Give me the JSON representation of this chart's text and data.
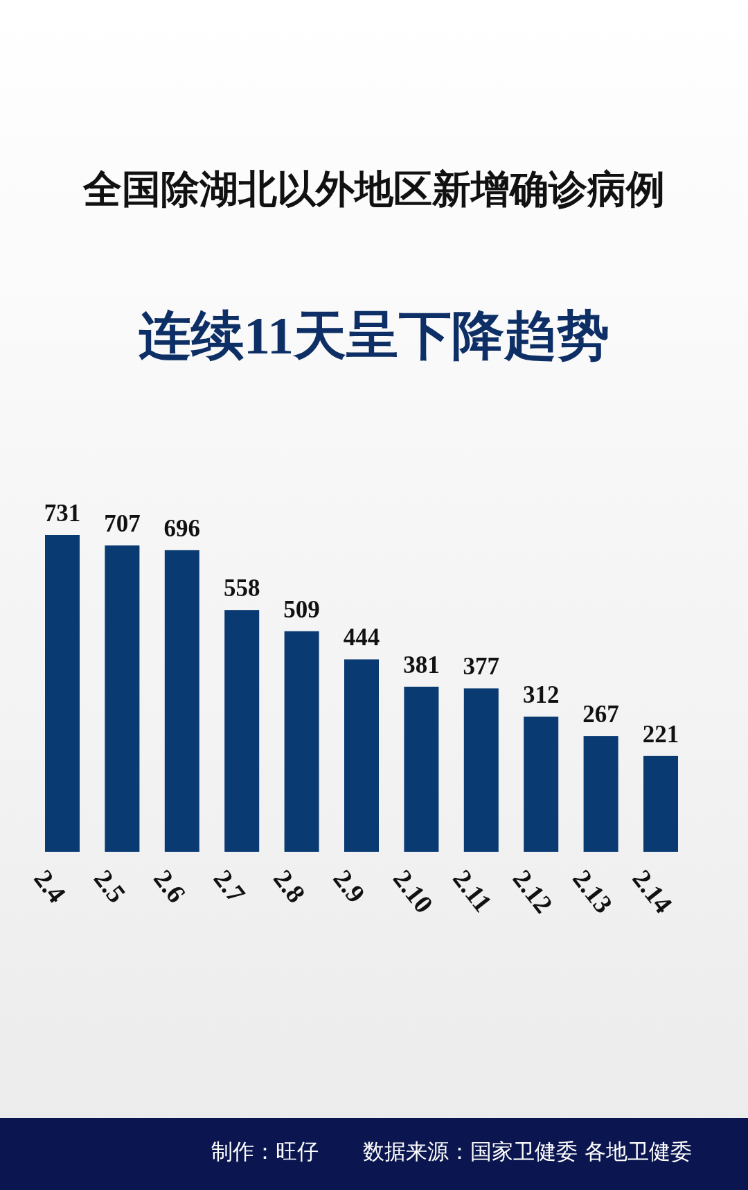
{
  "chart_data": {
    "type": "bar",
    "title": "全国除湖北以外地区新增确诊病例",
    "subtitle": "连续11天呈下降趋势",
    "categories": [
      "2.4",
      "2.5",
      "2.6",
      "2.7",
      "2.8",
      "2.9",
      "2.10",
      "2.11",
      "2.12",
      "2.13",
      "2.14"
    ],
    "values": [
      731,
      707,
      696,
      558,
      509,
      444,
      381,
      377,
      312,
      267,
      221
    ],
    "color": "#0a3a72",
    "data_labels": true,
    "tick_labels": "x",
    "annotations": [
      "制作：旺仔",
      "数据来源：国家卫健委 各地卫健委"
    ]
  }
}
